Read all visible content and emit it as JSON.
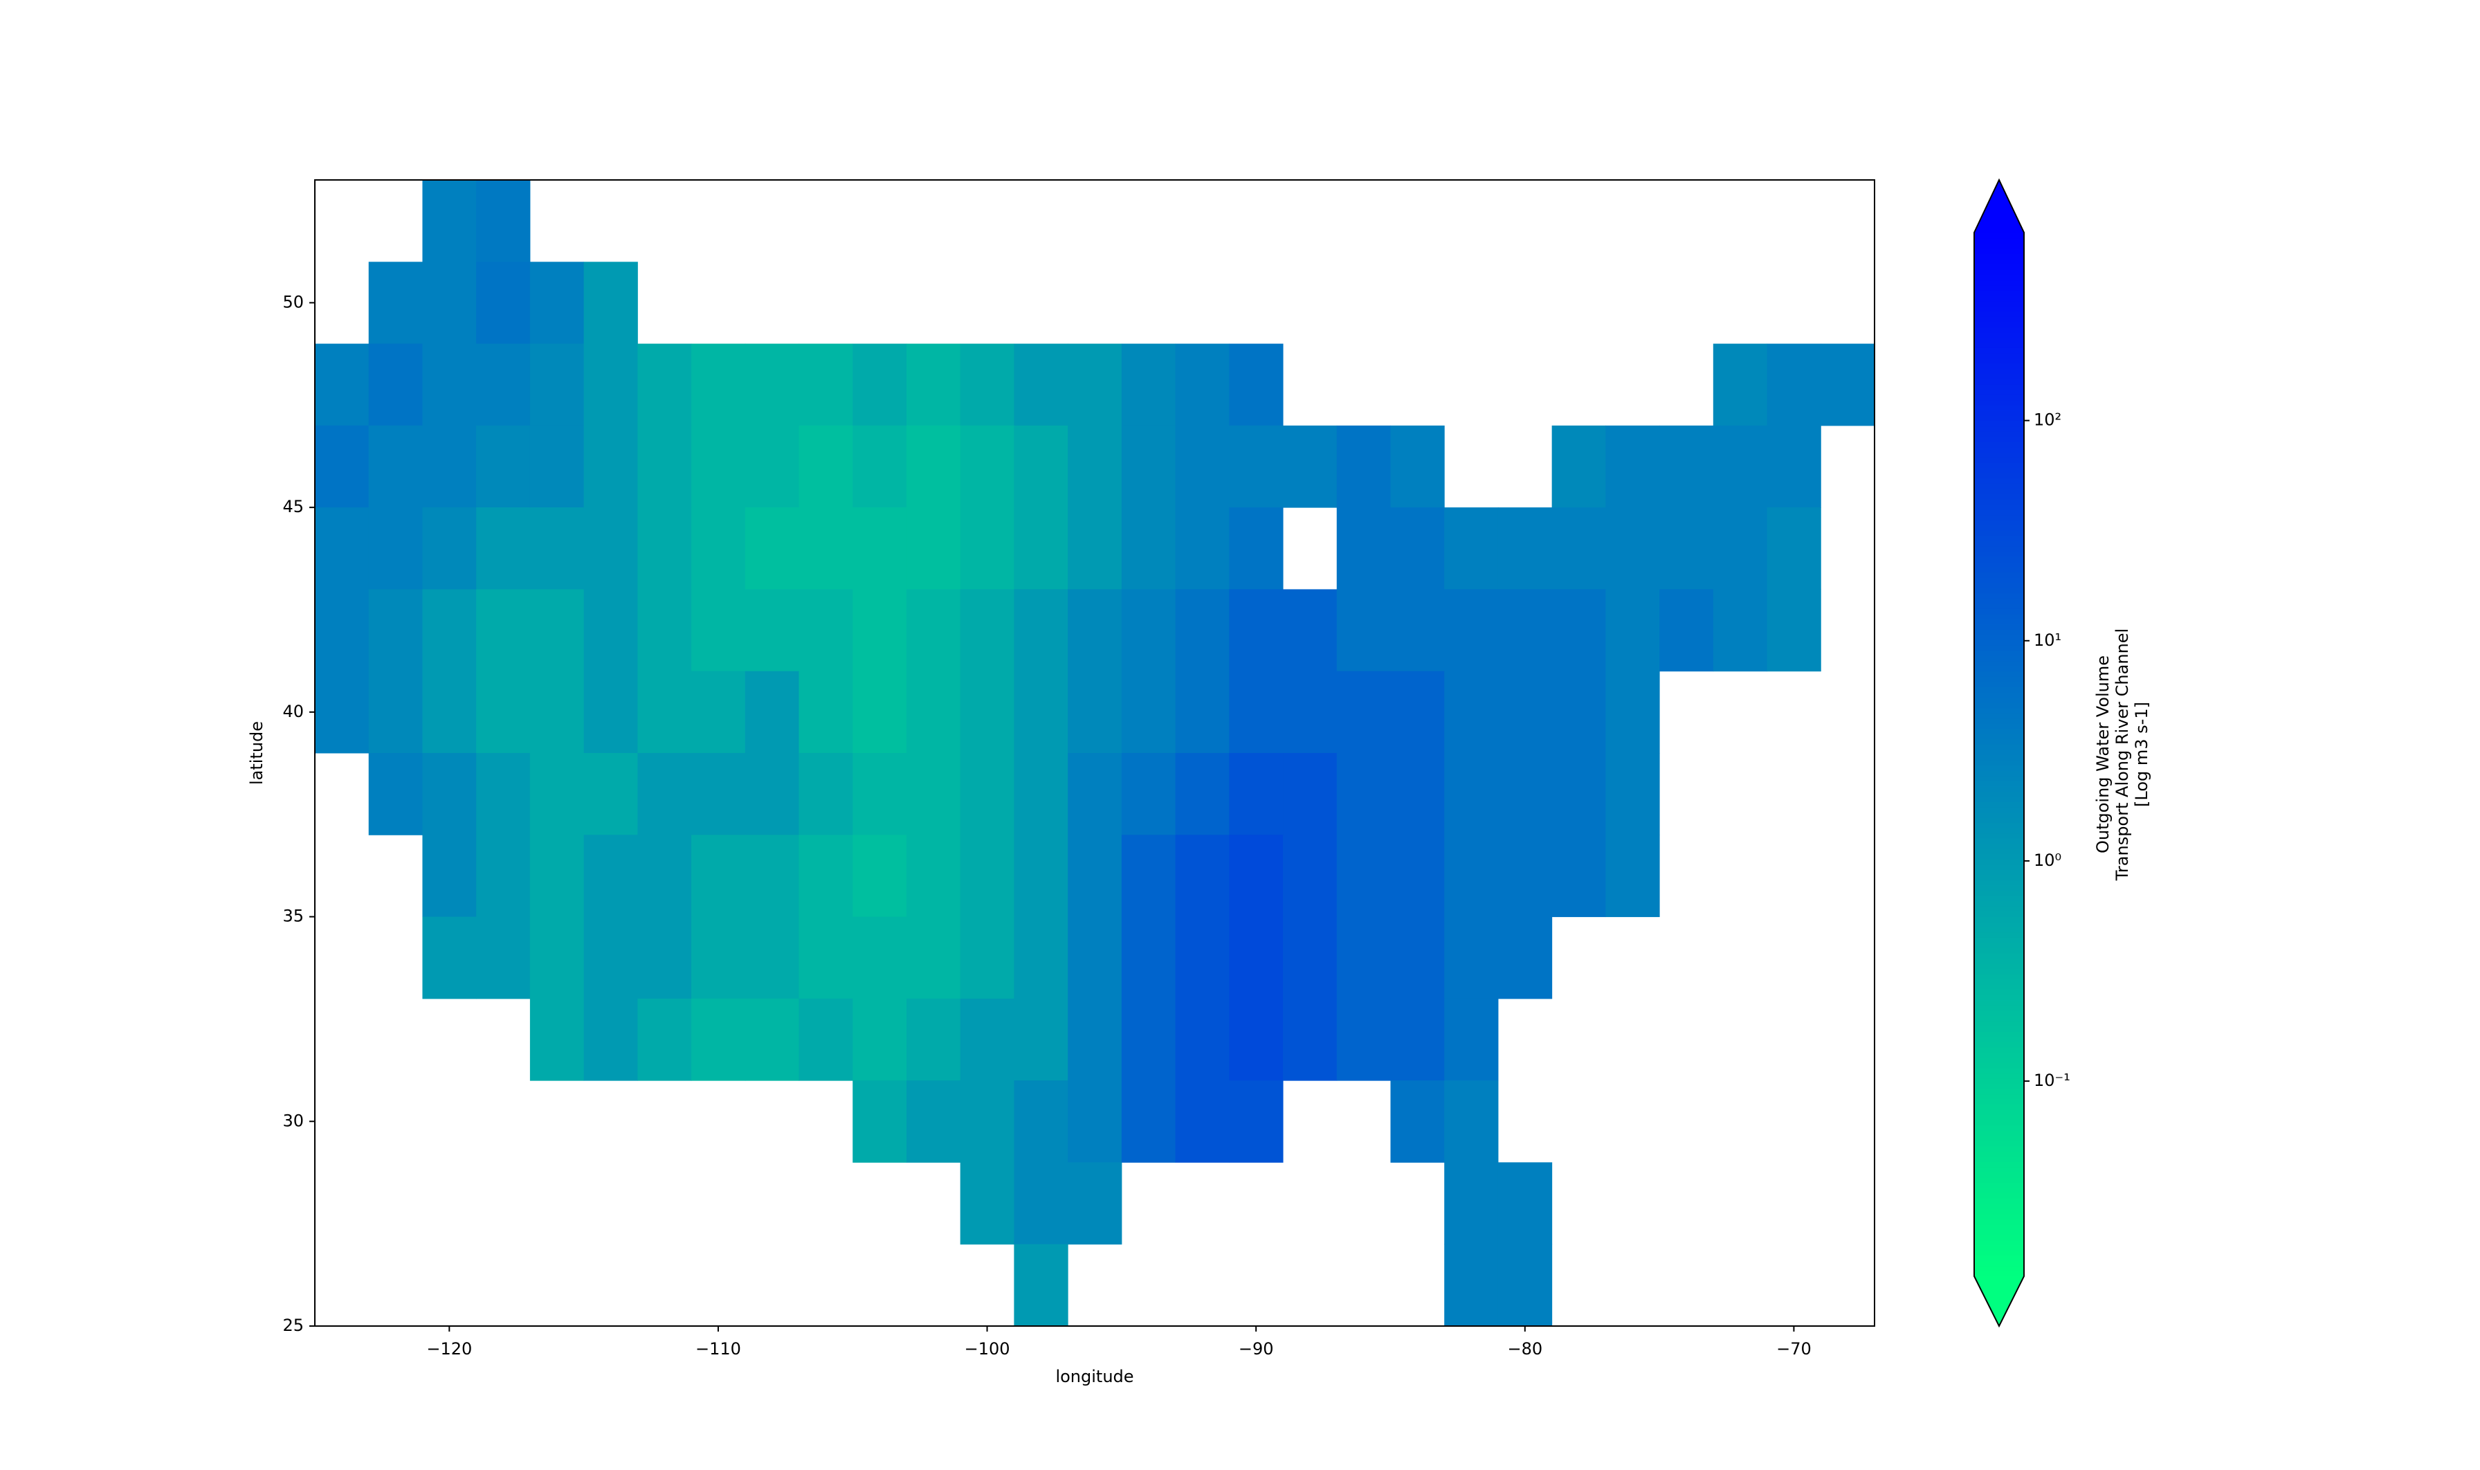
{
  "chart_data": {
    "type": "heatmap",
    "xlabel": "longitude",
    "ylabel": "latitude",
    "colorbar_label": [
      "Outgoing Water Volume",
      "Transport Along River Channel",
      "[Log m3 s-1]"
    ],
    "colormap": "winter_r",
    "color_scale": "log",
    "clim": [
      0.013,
      714
    ],
    "colorbar_extend": "both",
    "cticks": [
      {
        "value": 0.1,
        "label": "10⁻¹"
      },
      {
        "value": 1,
        "label": "10⁰"
      },
      {
        "value": 10,
        "label": "10¹"
      },
      {
        "value": 100,
        "label": "10²"
      }
    ],
    "xlim": [
      -125,
      -67
    ],
    "ylim": [
      25,
      53
    ],
    "xticks": [
      {
        "value": -120,
        "label": "−120"
      },
      {
        "value": -110,
        "label": "−110"
      },
      {
        "value": -100,
        "label": "−100"
      },
      {
        "value": -90,
        "label": "−90"
      },
      {
        "value": -80,
        "label": "−80"
      },
      {
        "value": -70,
        "label": "−70"
      }
    ],
    "yticks": [
      25,
      30,
      35,
      40,
      45,
      50
    ],
    "x": [
      -124,
      -122,
      -120,
      -118,
      -116,
      -114,
      -112,
      -110,
      -108,
      -106,
      -104,
      -102,
      -100,
      -98,
      -96,
      -94,
      -92,
      -90,
      -88,
      -86,
      -84,
      -82,
      -80,
      -78,
      -76,
      -74,
      -72,
      -70,
      -68
    ],
    "y": [
      52,
      50,
      48,
      46,
      44,
      42,
      40,
      38,
      36,
      34,
      32,
      30,
      28,
      26
    ],
    "z": [
      [
        null,
        null,
        3,
        4,
        null,
        null,
        null,
        null,
        null,
        null,
        null,
        null,
        null,
        null,
        null,
        null,
        null,
        null,
        null,
        null,
        null,
        null,
        null,
        null,
        null,
        null,
        null,
        null,
        null
      ],
      [
        null,
        3,
        3,
        5,
        3,
        1,
        null,
        null,
        null,
        null,
        null,
        null,
        null,
        null,
        null,
        null,
        null,
        null,
        null,
        null,
        null,
        null,
        null,
        null,
        null,
        null,
        null,
        null,
        null
      ],
      [
        3,
        5,
        3,
        3,
        2,
        1,
        0.5,
        0.3,
        0.3,
        0.3,
        0.5,
        0.3,
        0.5,
        1,
        1,
        2,
        3,
        5,
        null,
        null,
        null,
        null,
        null,
        null,
        null,
        null,
        2,
        3,
        3
      ],
      [
        5,
        3,
        3,
        2,
        2,
        1,
        0.5,
        0.3,
        0.3,
        0.2,
        0.3,
        0.2,
        0.3,
        0.5,
        1,
        2,
        3,
        3,
        3,
        5,
        3,
        null,
        null,
        2,
        3,
        3,
        3,
        3,
        null
      ],
      [
        3,
        3,
        2,
        1,
        1,
        1,
        0.5,
        0.3,
        0.2,
        0.2,
        0.2,
        0.2,
        0.3,
        0.5,
        1,
        2,
        3,
        5,
        null,
        5,
        5,
        3,
        3,
        3,
        3,
        3,
        3,
        2,
        null
      ],
      [
        3,
        2,
        1,
        0.5,
        0.5,
        1,
        0.5,
        0.3,
        0.3,
        0.3,
        0.2,
        0.3,
        0.5,
        1,
        2,
        3,
        5,
        10,
        10,
        5,
        5,
        5,
        5,
        5,
        3,
        5,
        3,
        2,
        null
      ],
      [
        3,
        2,
        1,
        0.5,
        0.5,
        1,
        0.5,
        0.5,
        1,
        0.3,
        0.2,
        0.3,
        0.5,
        1,
        2,
        3,
        5,
        10,
        10,
        10,
        10,
        5,
        5,
        5,
        3,
        null,
        null,
        null,
        null
      ],
      [
        null,
        3,
        2,
        1,
        0.5,
        0.5,
        1,
        1,
        1,
        0.5,
        0.3,
        0.3,
        0.5,
        1,
        3,
        5,
        10,
        20,
        20,
        10,
        10,
        5,
        5,
        5,
        3,
        null,
        null,
        null,
        null
      ],
      [
        null,
        null,
        2,
        1,
        0.5,
        1,
        1,
        0.5,
        0.5,
        0.3,
        0.2,
        0.3,
        0.5,
        1,
        3,
        10,
        20,
        30,
        20,
        10,
        10,
        5,
        5,
        5,
        3,
        null,
        null,
        null,
        null
      ],
      [
        null,
        null,
        1,
        1,
        0.5,
        1,
        1,
        0.5,
        0.5,
        0.3,
        0.3,
        0.3,
        0.5,
        1,
        3,
        10,
        20,
        30,
        20,
        10,
        10,
        5,
        5,
        null,
        null,
        null,
        null,
        null,
        null
      ],
      [
        null,
        null,
        null,
        null,
        0.5,
        1,
        0.5,
        0.3,
        0.3,
        0.5,
        0.3,
        0.5,
        1,
        1,
        3,
        10,
        20,
        30,
        20,
        10,
        10,
        5,
        null,
        null,
        null,
        null,
        null,
        null,
        null
      ],
      [
        null,
        null,
        null,
        null,
        null,
        null,
        null,
        null,
        null,
        null,
        0.5,
        1,
        1,
        2,
        3,
        10,
        20,
        20,
        null,
        null,
        5,
        3,
        null,
        null,
        null,
        null,
        null,
        null,
        null
      ],
      [
        null,
        null,
        null,
        null,
        null,
        null,
        null,
        null,
        null,
        null,
        null,
        null,
        1,
        2,
        2,
        null,
        null,
        null,
        null,
        null,
        null,
        3,
        3,
        null,
        null,
        null,
        null,
        null,
        null
      ],
      [
        null,
        null,
        null,
        null,
        null,
        null,
        null,
        null,
        null,
        null,
        null,
        null,
        null,
        1,
        null,
        null,
        null,
        null,
        null,
        null,
        null,
        3,
        3,
        null,
        null,
        null,
        null,
        null,
        null
      ]
    ]
  }
}
